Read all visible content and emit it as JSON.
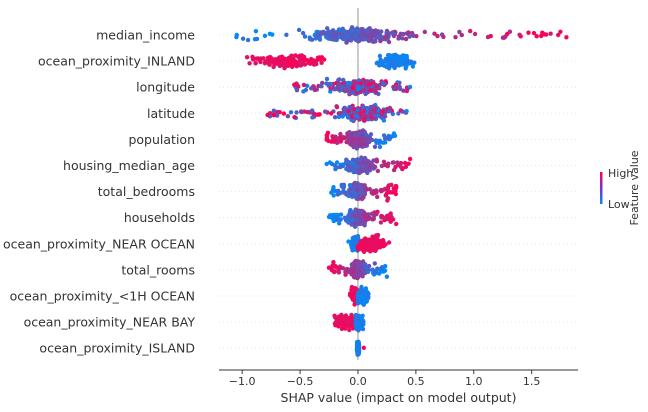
{
  "chart_data": {
    "type": "scatter",
    "subtype": "shap-beeswarm",
    "xlabel": "SHAP value (impact on model output)",
    "xlim": [
      -1.2,
      1.9
    ],
    "xticks": [
      -1.0,
      -0.5,
      0.0,
      0.5,
      1.0,
      1.5
    ],
    "xtick_labels": [
      "−1.0",
      "−0.5",
      "0.0",
      "0.5",
      "1.0",
      "1.5"
    ],
    "colorbar": {
      "title": "Feature value",
      "high_label": "High",
      "low_label": "Low",
      "high_color": "#ff0052",
      "low_color": "#008bfb"
    },
    "features": [
      {
        "name": "median_income",
        "min": -1.05,
        "max": 1.8,
        "center": 0.0,
        "width": 0.75,
        "pattern": "increasing"
      },
      {
        "name": "ocean_proximity_INLAND",
        "clusters": [
          {
            "center": -0.62,
            "min": -1.0,
            "max": -0.25,
            "color": "high"
          },
          {
            "center": 0.32,
            "min": 0.15,
            "max": 0.5,
            "color": "low"
          }
        ]
      },
      {
        "name": "longitude",
        "min": -0.55,
        "max": 0.45,
        "center": 0.0,
        "width": 0.4,
        "pattern": "mixed"
      },
      {
        "name": "latitude",
        "min": -0.78,
        "max": 0.42,
        "center": 0.05,
        "width": 0.4,
        "pattern": "mixed"
      },
      {
        "name": "population",
        "min": -0.27,
        "max": 0.32,
        "center": 0.0,
        "width": 0.18,
        "pattern": "decreasing"
      },
      {
        "name": "housing_median_age",
        "min": -0.27,
        "max": 0.45,
        "center": 0.0,
        "width": 0.2,
        "pattern": "increasing"
      },
      {
        "name": "total_bedrooms",
        "min": -0.23,
        "max": 0.33,
        "center": 0.0,
        "width": 0.15,
        "pattern": "increasing"
      },
      {
        "name": "households",
        "min": -0.25,
        "max": 0.33,
        "center": 0.0,
        "width": 0.15,
        "pattern": "increasing"
      },
      {
        "name": "ocean_proximity_NEAR OCEAN",
        "clusters": [
          {
            "center": -0.02,
            "min": -0.1,
            "max": 0.0,
            "color": "low"
          },
          {
            "center": 0.12,
            "min": 0.0,
            "max": 0.28,
            "color": "high"
          }
        ]
      },
      {
        "name": "total_rooms",
        "min": -0.25,
        "max": 0.25,
        "center": 0.0,
        "width": 0.12,
        "pattern": "decreasing"
      },
      {
        "name": "ocean_proximity_<1H OCEAN",
        "clusters": [
          {
            "center": -0.02,
            "min": -0.08,
            "max": 0.0,
            "color": "high"
          },
          {
            "center": 0.04,
            "min": 0.0,
            "max": 0.12,
            "color": "low"
          }
        ]
      },
      {
        "name": "ocean_proximity_NEAR BAY",
        "clusters": [
          {
            "center": -0.1,
            "min": -0.27,
            "max": -0.02,
            "color": "high"
          },
          {
            "center": 0.01,
            "min": -0.02,
            "max": 0.06,
            "color": "low"
          }
        ]
      },
      {
        "name": "ocean_proximity_ISLAND",
        "clusters": [
          {
            "center": 0.0,
            "min": -0.01,
            "max": 0.01,
            "color": "low"
          },
          {
            "center": 0.05,
            "min": 0.05,
            "max": 0.05,
            "color": "high"
          }
        ]
      }
    ]
  }
}
